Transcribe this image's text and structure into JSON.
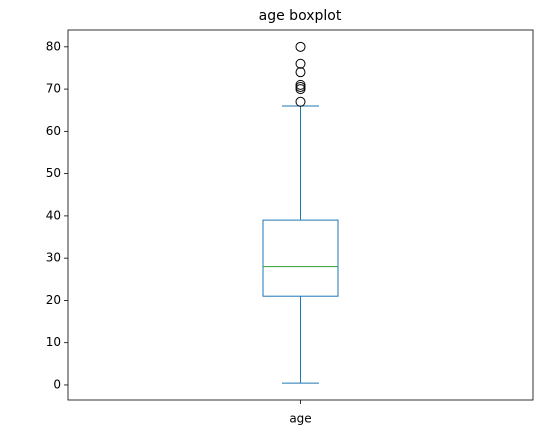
{
  "chart_data": {
    "type": "box",
    "title": "age boxplot",
    "categories": [
      "age"
    ],
    "boxes": [
      {
        "whislo": 0.42,
        "q1": 21,
        "med": 28,
        "q3": 39,
        "whishi": 66,
        "fliers": [
          80,
          76,
          74,
          71,
          70.5,
          70,
          67
        ]
      }
    ],
    "color": "#1f77b4",
    "median_color": "#2ca02c",
    "ylim": [
      -3.56,
      83.98
    ],
    "yticks": [
      0,
      10,
      20,
      30,
      40,
      50,
      60,
      70,
      80
    ],
    "grid": false
  }
}
